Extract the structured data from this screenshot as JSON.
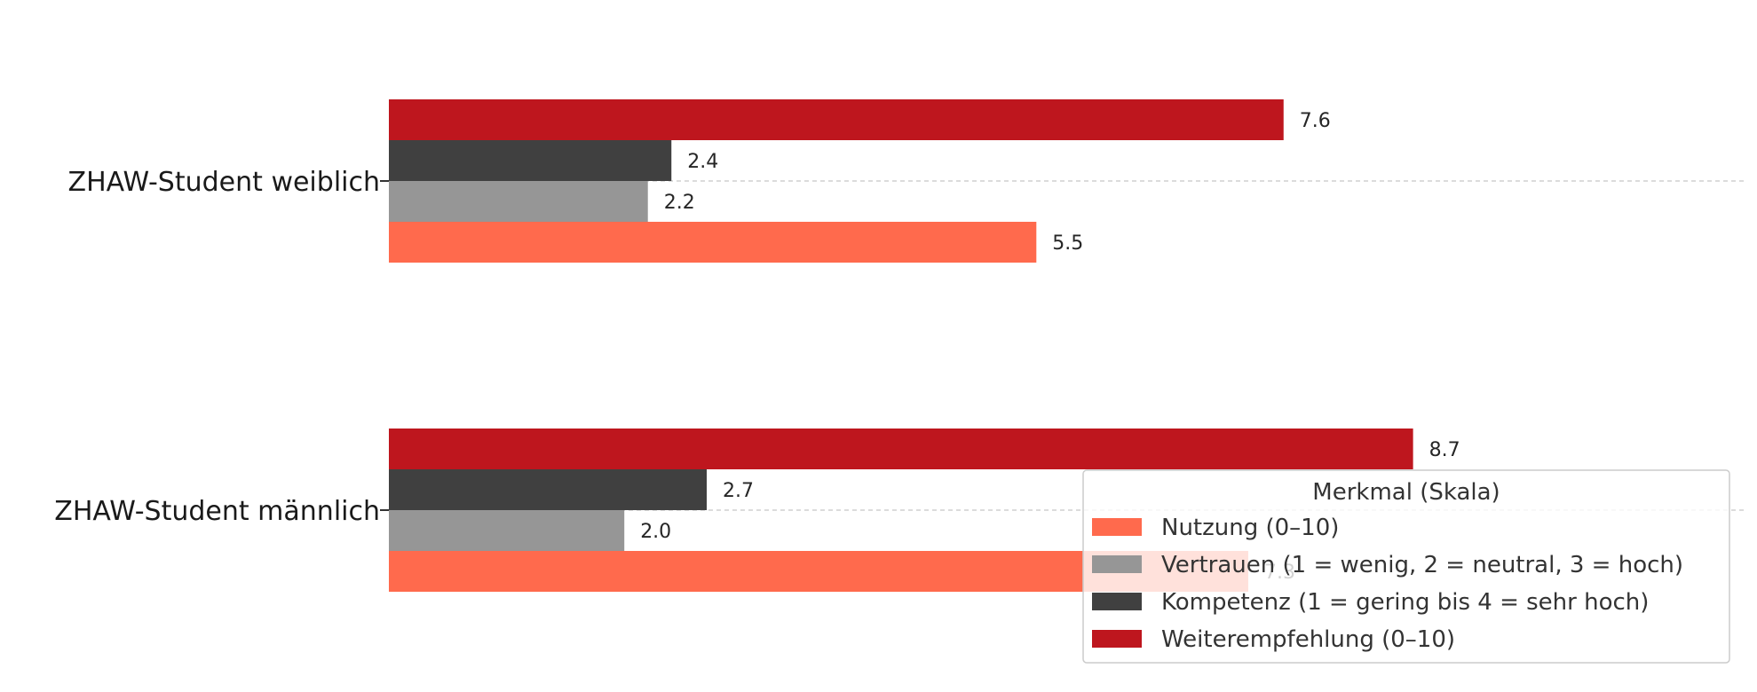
{
  "chart_data": {
    "type": "bar",
    "orientation": "horizontal",
    "title": "",
    "xlabel": "",
    "ylabel": "",
    "xlim": [
      0,
      10
    ],
    "categories": [
      "ZHAW-Student weiblich",
      "ZHAW-Student männlich"
    ],
    "series": [
      {
        "name": "Nutzung (0–10)",
        "color": "#ff6a4d",
        "values": [
          5.5,
          7.3
        ],
        "labels": [
          "5.5",
          "7.3"
        ]
      },
      {
        "name": "Vertrauen (1 = wenig, 2 = neutral, 3 = hoch)",
        "color": "#969696",
        "values": [
          2.2,
          2.0
        ],
        "labels": [
          "2.2",
          "2.0"
        ]
      },
      {
        "name": "Kompetenz (1 = gering bis 4 = sehr hoch)",
        "color": "#404040",
        "values": [
          2.4,
          2.7
        ],
        "labels": [
          "2.4",
          "2.7"
        ]
      },
      {
        "name": "Weiterempfehlung (0–10)",
        "color": "#be161e",
        "values": [
          7.6,
          8.7
        ],
        "labels": [
          "7.6",
          "8.7"
        ]
      }
    ],
    "legend": {
      "title": "Merkmal (Skala)",
      "position": "lower-right"
    },
    "grid": "horizontal-dashed-at-category"
  }
}
